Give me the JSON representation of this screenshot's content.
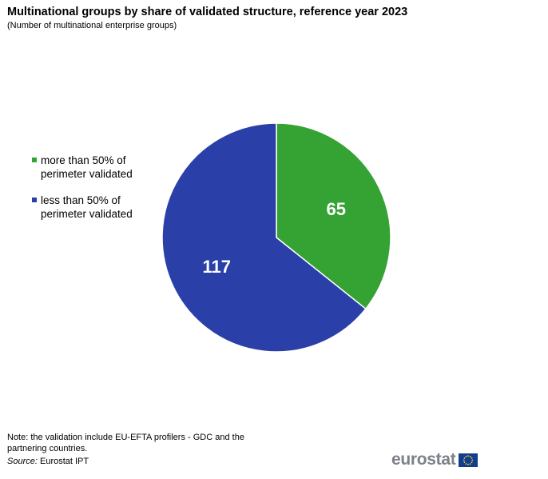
{
  "header": {
    "title": "Multinational groups by share of validated structure, reference year 2023",
    "subtitle": "(Number of multinational enterprise groups)"
  },
  "colors": {
    "more_than_50": "#35a234",
    "less_than_50": "#2a40a8",
    "slice_label": "#ffffff",
    "logo_text": "#7c8088",
    "flag_blue": "#103d8f",
    "flag_stars": "#f6d31c"
  },
  "chart_data": {
    "type": "pie",
    "title": "Multinational groups by share of validated structure, reference year 2023",
    "subtitle": "(Number of multinational enterprise groups)",
    "legend_position": "left",
    "start_angle": "12 o'clock",
    "direction": "clockwise",
    "slices": [
      {
        "name": "more than 50% of perimeter validated",
        "value": 65,
        "label": "65",
        "color": "#35a234"
      },
      {
        "name": "less than 50% of perimeter validated",
        "value": 117,
        "label": "117",
        "color": "#2a40a8"
      }
    ]
  },
  "legend": {
    "items": [
      {
        "label": "more than 50% of perimeter validated",
        "color": "#35a234"
      },
      {
        "label": "less than 50% of perimeter validated",
        "color": "#2a40a8"
      }
    ]
  },
  "footer": {
    "note": "Note: the validation include EU-EFTA profilers - GDC and the partnering countries.",
    "source_label": "Source:",
    "source_text": "Eurostat IPT",
    "logo_text": "eurostat",
    "logo_icon": "eu-flag-icon"
  }
}
